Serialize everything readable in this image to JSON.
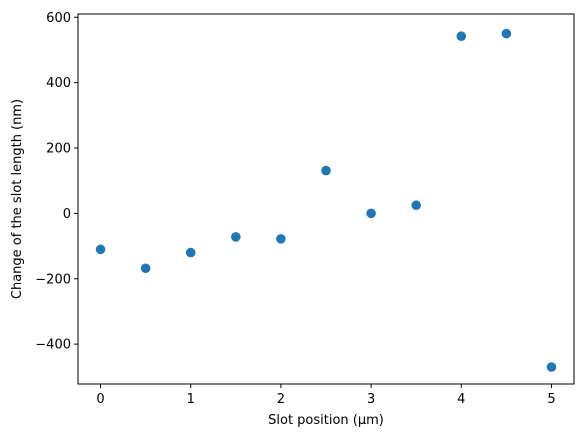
{
  "chart_data": {
    "type": "scatter",
    "title": "",
    "xlabel": "Slot position (μm)",
    "ylabel": "Change of the slot length (nm)",
    "xlim": [
      -0.25,
      5.25
    ],
    "ylim": [
      -522,
      610
    ],
    "xticks": [
      0,
      1,
      2,
      3,
      4,
      5
    ],
    "yticks": [
      -400,
      -200,
      0,
      200,
      400,
      600
    ],
    "xtick_labels": [
      "0",
      "1",
      "2",
      "3",
      "4",
      "5"
    ],
    "ytick_labels": [
      "−400",
      "−200",
      "0",
      "200",
      "400",
      "600"
    ],
    "grid": false,
    "marker_color": "#1f77b4",
    "points": [
      {
        "x": 0.0,
        "y": -110
      },
      {
        "x": 0.5,
        "y": -168
      },
      {
        "x": 1.0,
        "y": -120
      },
      {
        "x": 1.5,
        "y": -72
      },
      {
        "x": 2.0,
        "y": -78
      },
      {
        "x": 2.5,
        "y": 131
      },
      {
        "x": 3.0,
        "y": 0
      },
      {
        "x": 3.5,
        "y": 25
      },
      {
        "x": 4.0,
        "y": 542
      },
      {
        "x": 4.5,
        "y": 550
      },
      {
        "x": 5.0,
        "y": -470
      }
    ]
  }
}
